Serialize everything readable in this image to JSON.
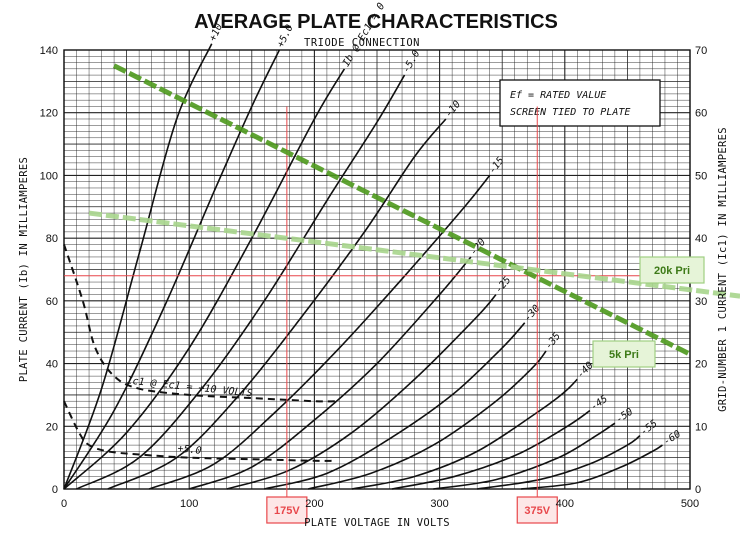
{
  "chart_data": {
    "type": "line",
    "title": "AVERAGE PLATE CHARACTERISTICS",
    "subtitle": "TRIODE CONNECTION",
    "xlabel": "PLATE VOLTAGE IN VOLTS",
    "ylabel_left": "PLATE CURRENT (Ib) IN MILLIAMPERES",
    "ylabel_right": "GRID-NUMBER 1 CURRENT (Ic1) IN MILLIAMPERES",
    "xlim": [
      0,
      500
    ],
    "ylim_left": [
      0,
      140
    ],
    "ylim_right": [
      0,
      70
    ],
    "x_ticks": [
      "0",
      "100",
      "200",
      "300",
      "400",
      "500"
    ],
    "y_ticks_left": [
      "0",
      "20",
      "40",
      "60",
      "80",
      "100",
      "120",
      "140"
    ],
    "y_ticks_right": [
      "0",
      "10",
      "20",
      "30",
      "40",
      "50",
      "60",
      "70"
    ],
    "grid": true,
    "note_lines": [
      "Ef = RATED VALUE",
      "SCREEN TIED TO PLATE"
    ],
    "plate_curves": [
      {
        "label": "+10",
        "x": [
          0,
          30,
          60,
          90,
          118
        ],
        "y": [
          0,
          32,
          75,
          118,
          142
        ]
      },
      {
        "label": "+5.0",
        "x": [
          0,
          40,
          80,
          120,
          150,
          172
        ],
        "y": [
          0,
          25,
          58,
          95,
          122,
          140
        ]
      },
      {
        "label": "Ib @ Ec1 = 0 VOLTS",
        "x": [
          0,
          50,
          100,
          150,
          200,
          224
        ],
        "y": [
          0,
          18,
          45,
          80,
          118,
          134
        ]
      },
      {
        "label": "-5.0",
        "x": [
          10,
          60,
          110,
          160,
          210,
          250,
          272
        ],
        "y": [
          0,
          10,
          32,
          60,
          92,
          117,
          132
        ]
      },
      {
        "label": "-10",
        "x": [
          35,
          90,
          140,
          190,
          240,
          280,
          305
        ],
        "y": [
          0,
          10,
          30,
          55,
          82,
          106,
          118
        ]
      },
      {
        "label": "-15",
        "x": [
          68,
          120,
          170,
          220,
          270,
          320,
          340
        ],
        "y": [
          0,
          8,
          25,
          45,
          67,
          90,
          100
        ]
      },
      {
        "label": "-20",
        "x": [
          100,
          150,
          200,
          250,
          300,
          325
        ],
        "y": [
          0,
          7,
          22,
          40,
          62,
          74
        ]
      },
      {
        "label": "-25",
        "x": [
          130,
          180,
          230,
          280,
          330,
          345
        ],
        "y": [
          0,
          6,
          18,
          35,
          55,
          62
        ]
      },
      {
        "label": "-30",
        "x": [
          160,
          210,
          260,
          310,
          350,
          368
        ],
        "y": [
          0,
          5,
          16,
          30,
          45,
          53
        ]
      },
      {
        "label": "-35",
        "x": [
          195,
          245,
          295,
          345,
          375,
          385
        ],
        "y": [
          0,
          5,
          14,
          28,
          39,
          44
        ]
      },
      {
        "label": "-40",
        "x": [
          230,
          280,
          330,
          380,
          400,
          410
        ],
        "y": [
          0,
          4,
          12,
          25,
          31,
          35
        ]
      },
      {
        "label": "-45",
        "x": [
          262,
          312,
          362,
          402,
          420
        ],
        "y": [
          0,
          4,
          11,
          20,
          25
        ]
      },
      {
        "label": "-50",
        "x": [
          295,
          345,
          395,
          425,
          440
        ],
        "y": [
          0,
          3,
          10,
          17,
          21
        ]
      },
      {
        "label": "-55",
        "x": [
          330,
          380,
          420,
          450,
          460
        ],
        "y": [
          0,
          3,
          8,
          14,
          17
        ]
      },
      {
        "label": "-60",
        "x": [
          365,
          410,
          445,
          470,
          478
        ],
        "y": [
          0,
          2,
          7,
          12,
          14
        ]
      }
    ],
    "grid_current_curves": [
      {
        "label": "Ic1 @ Ec1 = +10 VOLTS",
        "x": [
          0,
          15,
          25,
          40,
          60,
          100,
          150,
          200,
          220
        ],
        "y": [
          78,
          60,
          45,
          36,
          32,
          30,
          29,
          28,
          28
        ]
      },
      {
        "label": "+5.0",
        "x": [
          0,
          12,
          20,
          35,
          60,
          100,
          150,
          200,
          215
        ],
        "y": [
          28,
          18,
          14,
          12,
          11,
          10,
          9.5,
          9,
          9
        ]
      }
    ],
    "load_lines": [
      {
        "label": "5k Pri",
        "x": [
          40,
          500
        ],
        "y": [
          135,
          43
        ],
        "color": "#4e9a1e"
      },
      {
        "label": "20k Pri",
        "x": [
          20,
          540
        ],
        "y": [
          88,
          61.5
        ],
        "color": "#a8d58c"
      }
    ],
    "markers": {
      "operating_current": 68,
      "voltages": [
        {
          "label": "175V",
          "x": 178
        },
        {
          "label": "375V",
          "x": 378
        }
      ],
      "marker_color": "#e8474b",
      "label_bg": "#fde7e7"
    },
    "callout_colors": {
      "fill": "#e6f4d8",
      "text": "#3d7a17",
      "stroke": "#9fcf83"
    }
  }
}
